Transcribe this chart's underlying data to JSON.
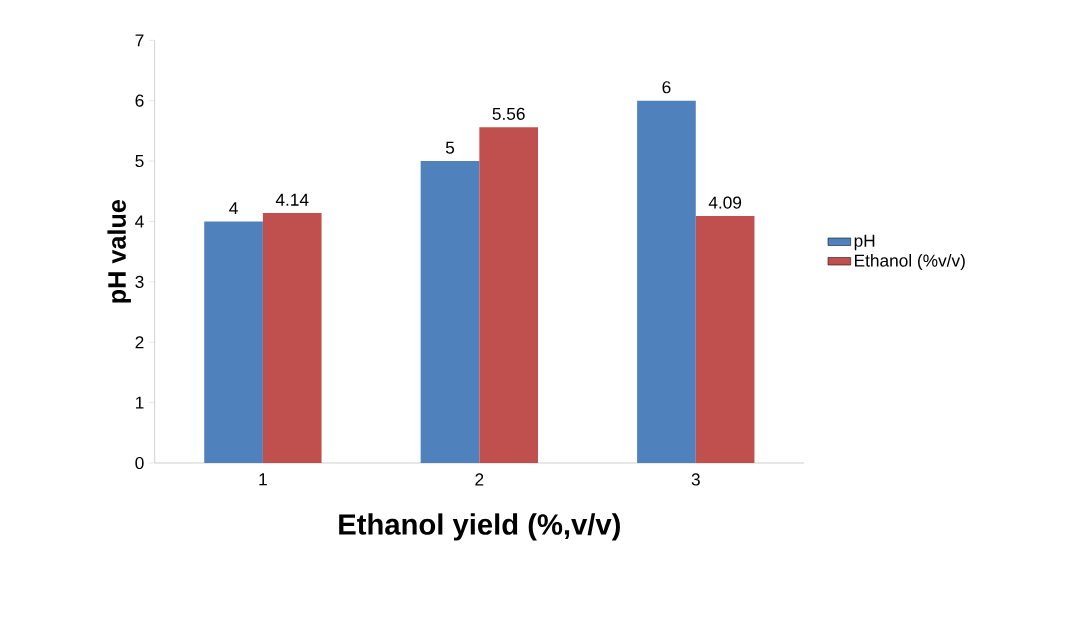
{
  "chart_data": {
    "type": "bar",
    "xlabel": "Ethanol yield (%,v/v)",
    "ylabel": "pH value",
    "categories": [
      "1",
      "2",
      "3"
    ],
    "series": [
      {
        "name": "pH",
        "color": "#4f81bd",
        "values": [
          4,
          5,
          6
        ]
      },
      {
        "name": "Ethanol (%v/v)",
        "color": "#c0504d",
        "values": [
          4.14,
          5.56,
          4.09
        ]
      }
    ],
    "ylim": [
      0,
      7
    ],
    "yticks": [
      0,
      1,
      2,
      3,
      4,
      5,
      6,
      7
    ],
    "data_labels": true,
    "legend": "right"
  }
}
